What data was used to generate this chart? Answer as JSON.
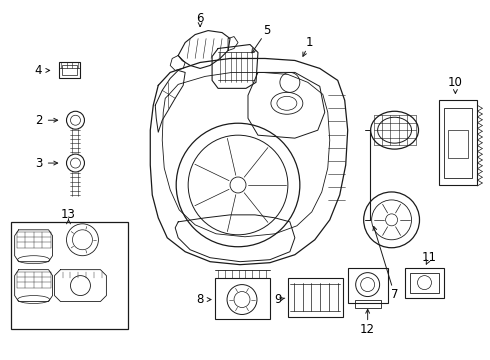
{
  "background_color": "#ffffff",
  "fig_width": 4.9,
  "fig_height": 3.6,
  "dpi": 100,
  "line_color": "#1a1a1a",
  "text_color": "#000000",
  "font_size": 8.5
}
